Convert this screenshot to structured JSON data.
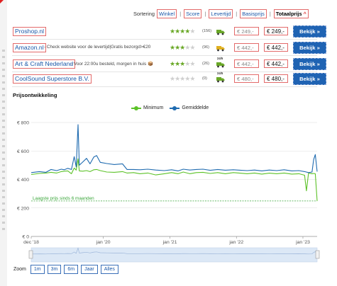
{
  "sort": {
    "label": "Sortering",
    "options": [
      "Winkel",
      "Score",
      "Levertijd",
      "Basisprijs",
      "Totaalprijs"
    ],
    "active": "Totaalprijs",
    "active_indicator": "^"
  },
  "offers": [
    {
      "shop": "Proshop.nl",
      "info": "",
      "rating": 4.5,
      "reviews": "(156)",
      "delivery": "",
      "truck_color": "#6aa827",
      "base_price": "€ 249,-",
      "total_price": "€ 249,-",
      "button": "Bekijk »"
    },
    {
      "shop": "Amazon.nl",
      "info": "- Check website voor de levertijd|Gratis bezorgd>€20",
      "rating": 3,
      "reviews": "(96)",
      "delivery": "",
      "truck_color": "#e0b020",
      "base_price": "€ 442,-",
      "total_price": "€ 442,-",
      "button": "Bekijk »"
    },
    {
      "shop": "Art & Craft Nederland",
      "info": "- Voor 22:00u besteld, morgen in huis 📦",
      "rating": 3,
      "reviews": "(26)",
      "delivery": "24/5",
      "truck_color": "#6aa827",
      "base_price": "€ 442,-",
      "total_price": "€ 442,-",
      "button": "Bekijk »"
    },
    {
      "shop": "CoolSound Superstore B.V.",
      "info": "",
      "rating": 0,
      "reviews": "(0)",
      "delivery": "24/5",
      "truck_color": "#6aa827",
      "base_price": "€ 480,-",
      "total_price": "€ 480,-",
      "button": "Bekijk »"
    }
  ],
  "price_history": {
    "title": "Prijsontwikkeling",
    "zoom_label": "Zoom",
    "zoom_options": [
      "1m",
      "3m",
      "6m",
      "Jaar",
      "Alles"
    ],
    "colors": {
      "minimum": "#5cc228",
      "gemiddelde": "#1f6bb0",
      "lowest": "#3aa63a",
      "grid": "#dddddd"
    }
  },
  "chart_data": {
    "type": "line",
    "legend": [
      "Minimum",
      "Gemiddelde"
    ],
    "legend_position": "top-center",
    "yticks": [
      "€ 0",
      "€ 200",
      "€ 400",
      "€ 600",
      "€ 800"
    ],
    "ylim": [
      0,
      800
    ],
    "xticks": [
      "dec '18",
      "jan '20",
      "jan '21",
      "jan '22",
      "jan '23"
    ],
    "xtick_dates": [
      "2018-12-01",
      "2020-01-01",
      "2021-01-01",
      "2022-01-01",
      "2023-01-01"
    ],
    "xlim": [
      "2018-12-01",
      "2023-03-20"
    ],
    "lowest_price": {
      "label": "Laagste prijs sinds 6 maanden",
      "value": 249
    },
    "series": [
      {
        "name": "Gemiddelde",
        "points": [
          [
            "2018-12-01",
            448
          ],
          [
            "2019-01-15",
            455
          ],
          [
            "2019-02-20",
            450
          ],
          [
            "2019-03-20",
            470
          ],
          [
            "2019-04-20",
            462
          ],
          [
            "2019-05-15",
            472
          ],
          [
            "2019-06-01",
            468
          ],
          [
            "2019-06-20",
            478
          ],
          [
            "2019-07-10",
            470
          ],
          [
            "2019-07-25",
            560
          ],
          [
            "2019-08-05",
            488
          ],
          [
            "2019-08-15",
            785
          ],
          [
            "2019-08-22",
            500
          ],
          [
            "2019-09-10",
            522
          ],
          [
            "2019-10-01",
            548
          ],
          [
            "2019-10-20",
            510
          ],
          [
            "2019-11-10",
            558
          ],
          [
            "2019-11-25",
            568
          ],
          [
            "2019-12-15",
            520
          ],
          [
            "2020-01-20",
            512
          ],
          [
            "2020-03-01",
            505
          ],
          [
            "2020-04-15",
            510
          ],
          [
            "2020-05-10",
            470
          ],
          [
            "2020-06-15",
            470
          ],
          [
            "2020-07-20",
            468
          ],
          [
            "2020-09-01",
            472
          ],
          [
            "2020-10-15",
            466
          ],
          [
            "2020-12-01",
            462
          ],
          [
            "2021-01-10",
            468
          ],
          [
            "2021-02-15",
            460
          ],
          [
            "2021-03-15",
            472
          ],
          [
            "2021-04-20",
            466
          ],
          [
            "2021-05-25",
            470
          ],
          [
            "2021-07-01",
            472
          ],
          [
            "2021-08-10",
            464
          ],
          [
            "2021-09-20",
            470
          ],
          [
            "2021-11-01",
            465
          ],
          [
            "2021-12-15",
            468
          ],
          [
            "2022-01-20",
            465
          ],
          [
            "2022-03-01",
            462
          ],
          [
            "2022-04-10",
            466
          ],
          [
            "2022-05-20",
            460
          ],
          [
            "2022-07-01",
            466
          ],
          [
            "2022-08-10",
            462
          ],
          [
            "2022-09-20",
            468
          ],
          [
            "2022-11-01",
            460
          ],
          [
            "2022-12-10",
            462
          ],
          [
            "2023-01-10",
            455
          ],
          [
            "2023-02-01",
            448
          ],
          [
            "2023-02-20",
            452
          ],
          [
            "2023-03-01",
            540
          ],
          [
            "2023-03-10",
            575
          ],
          [
            "2023-03-20",
            455
          ]
        ]
      },
      {
        "name": "Minimum",
        "points": [
          [
            "2018-12-01",
            435
          ],
          [
            "2019-01-15",
            442
          ],
          [
            "2019-02-20",
            445
          ],
          [
            "2019-03-20",
            450
          ],
          [
            "2019-04-20",
            445
          ],
          [
            "2019-05-15",
            455
          ],
          [
            "2019-06-01",
            458
          ],
          [
            "2019-06-20",
            460
          ],
          [
            "2019-07-10",
            440
          ],
          [
            "2019-07-25",
            480
          ],
          [
            "2019-08-05",
            465
          ],
          [
            "2019-08-15",
            545
          ],
          [
            "2019-08-22",
            460
          ],
          [
            "2019-09-10",
            458
          ],
          [
            "2019-10-01",
            462
          ],
          [
            "2019-10-20",
            455
          ],
          [
            "2019-11-10",
            468
          ],
          [
            "2019-11-25",
            470
          ],
          [
            "2019-12-15",
            462
          ],
          [
            "2020-01-20",
            452
          ],
          [
            "2020-03-01",
            450
          ],
          [
            "2020-04-15",
            455
          ],
          [
            "2020-05-10",
            445
          ],
          [
            "2020-06-15",
            448
          ],
          [
            "2020-07-20",
            440
          ],
          [
            "2020-09-01",
            445
          ],
          [
            "2020-10-15",
            432
          ],
          [
            "2020-12-01",
            440
          ],
          [
            "2021-01-10",
            448
          ],
          [
            "2021-02-15",
            440
          ],
          [
            "2021-03-15",
            452
          ],
          [
            "2021-04-20",
            440
          ],
          [
            "2021-05-25",
            448
          ],
          [
            "2021-07-01",
            450
          ],
          [
            "2021-08-10",
            442
          ],
          [
            "2021-09-20",
            448
          ],
          [
            "2021-11-01",
            440
          ],
          [
            "2021-12-15",
            448
          ],
          [
            "2022-01-20",
            444
          ],
          [
            "2022-03-01",
            440
          ],
          [
            "2022-04-10",
            445
          ],
          [
            "2022-05-20",
            438
          ],
          [
            "2022-07-01",
            444
          ],
          [
            "2022-08-10",
            440
          ],
          [
            "2022-09-20",
            445
          ],
          [
            "2022-11-01",
            438
          ],
          [
            "2022-12-10",
            440
          ],
          [
            "2023-01-10",
            430
          ],
          [
            "2023-01-20",
            320
          ],
          [
            "2023-02-01",
            445
          ],
          [
            "2023-02-20",
            440
          ],
          [
            "2023-03-01",
            442
          ],
          [
            "2023-03-10",
            440
          ],
          [
            "2023-03-20",
            249
          ]
        ]
      }
    ]
  }
}
